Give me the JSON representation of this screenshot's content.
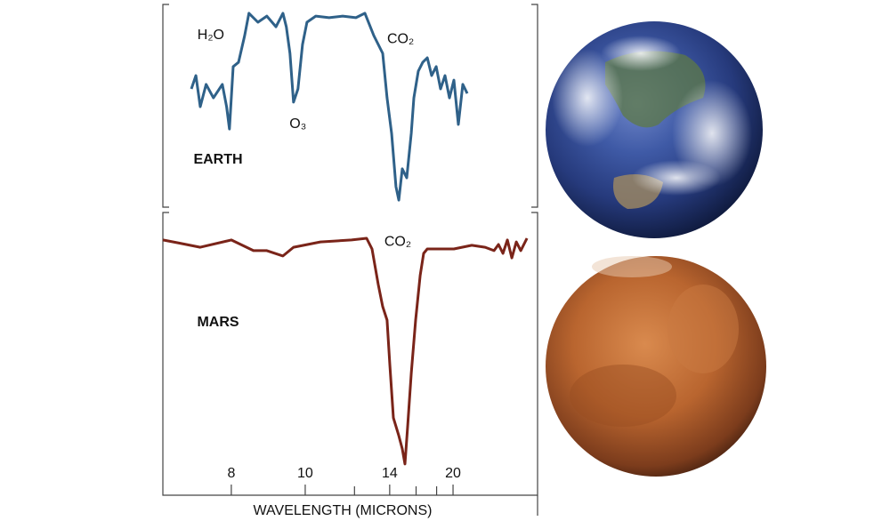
{
  "chart_data": [
    {
      "type": "line",
      "title": "EARTH",
      "xscale": "reciprocal",
      "xlim": [
        6.75,
        46.7
      ],
      "ylim": [
        0,
        100
      ],
      "x": [
        7.22,
        7.3,
        7.38,
        7.49,
        7.63,
        7.81,
        7.9,
        7.96,
        8.04,
        8.16,
        8.3,
        8.4,
        8.62,
        8.85,
        9.1,
        9.3,
        9.4,
        9.51,
        9.62,
        9.76,
        9.91,
        10.06,
        10.37,
        10.88,
        11.45,
        12.07,
        12.53,
        13.02,
        13.55,
        13.83,
        14.13,
        14.43,
        14.63,
        14.89,
        15.23,
        15.59,
        15.81,
        16.19,
        16.6,
        17.03,
        17.47,
        17.95,
        18.44,
        18.97,
        19.53,
        20.12,
        20.75,
        21.42,
        22.13
      ],
      "series": [
        {
          "color": "#2f6189",
          "values": [
            58.7,
            65.2,
            50,
            60.9,
            54.3,
            60.9,
            50,
            39.1,
            69.6,
            71.7,
            84.8,
            95.7,
            91.3,
            94.3,
            89.1,
            95.7,
            89.1,
            76.1,
            52.2,
            58.7,
            80.4,
            91.3,
            94.3,
            93.5,
            94.3,
            93.5,
            95.7,
            84.8,
            76.1,
            54.3,
            37,
            10.9,
            4.3,
            19.6,
            15.2,
            37,
            54.3,
            67.4,
            71.7,
            73.9,
            65.2,
            69.6,
            58.7,
            65.2,
            54.3,
            63,
            41.3,
            60.9,
            56.5
          ]
        }
      ],
      "annotations": [
        {
          "text": "H₂O",
          "x": 7.58,
          "y": 84.8
        },
        {
          "text": "O₃",
          "x": 9.76,
          "y": 41.3
        },
        {
          "text": "CO₂",
          "x": 14.76,
          "y": 83
        }
      ]
    },
    {
      "type": "line",
      "title": "MARS",
      "xscale": "reciprocal",
      "xlim": [
        6.75,
        46.7
      ],
      "ylim": [
        0,
        100
      ],
      "xlabel": "WAVELENGTH (MICRONS)",
      "xticks": [
        8,
        10,
        14,
        20
      ],
      "xminorticks": [
        12,
        16,
        18
      ],
      "x": [
        6.75,
        6.99,
        7.38,
        8.0,
        8.51,
        8.85,
        9.3,
        9.62,
        10.54,
        11.86,
        12.62,
        12.92,
        13.28,
        13.55,
        13.83,
        14.01,
        14.25,
        14.63,
        14.89,
        15.09,
        15.3,
        15.59,
        15.96,
        16.36,
        16.68,
        17.03,
        17.95,
        20.12,
        22.9,
        25.54,
        27.67,
        28.87,
        30.18,
        31.62,
        33.2,
        34.95,
        36.89,
        40.0
      ],
      "series": [
        {
          "color": "#7a2419",
          "values": [
            90.5,
            89.5,
            87.9,
            90.5,
            86.7,
            86.7,
            84.8,
            87.9,
            89.8,
            90.5,
            91.1,
            87.3,
            74.6,
            66.7,
            61.9,
            46,
            27,
            20.6,
            15.9,
            10.5,
            23.8,
            42.9,
            61.9,
            77.8,
            85.7,
            87.3,
            87.3,
            87.3,
            88.6,
            87.9,
            86.7,
            88.9,
            85.7,
            90.5,
            84.1,
            89.8,
            86.7,
            91.1
          ]
        }
      ],
      "annotations": [
        {
          "text": "CO₂",
          "x": 14.56,
          "y": 89.8
        }
      ]
    }
  ]
}
